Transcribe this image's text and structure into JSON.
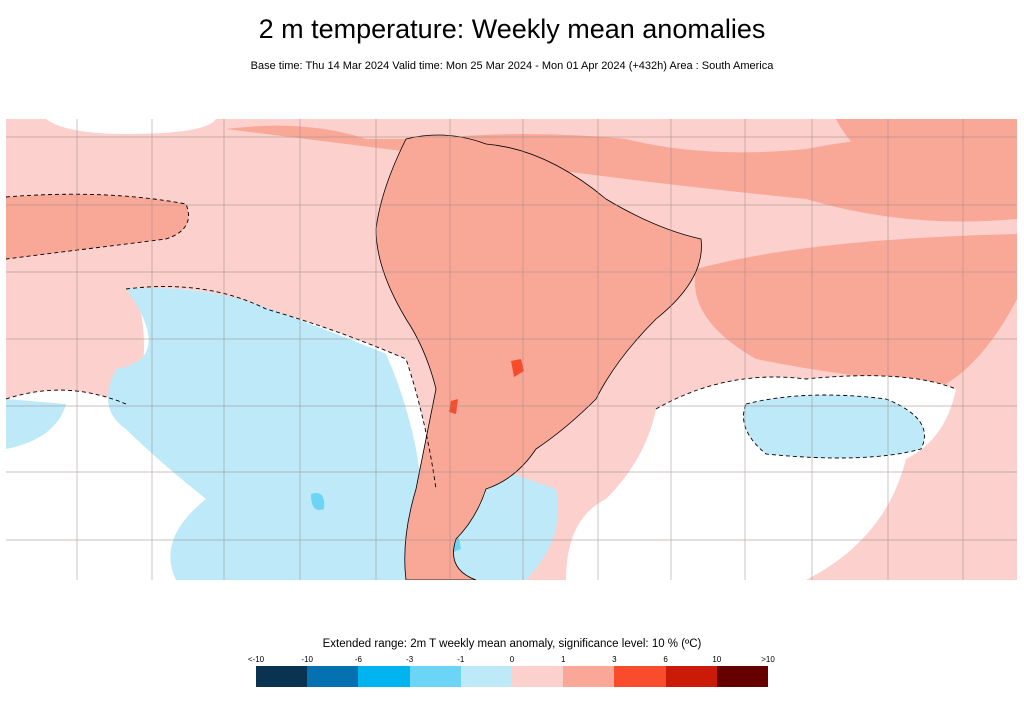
{
  "header": {
    "title": "2 m temperature: Weekly mean anomalies",
    "subtitle": "Base time: Thu 14 Mar 2024 Valid time: Mon 25 Mar 2024 - Mon 01 Apr 2024 (+432h) Area : South America"
  },
  "map": {
    "area": "South America",
    "colors": {
      "land_outline": "#000000",
      "grid": "#9a8a85",
      "base_warm": "#fcd0cc",
      "warm": "#f9a898",
      "cool": "#bde9f8",
      "cooler": "#6cd4f5",
      "neutral": "#ffffff",
      "hot": "#f84c2c"
    }
  },
  "legend": {
    "title": "Extended range: 2m T weekly mean anomaly, significance level: 10 % (ºC)",
    "ticks": [
      "<-10",
      "-10",
      "-6",
      "-3",
      "-1",
      "0",
      "1",
      "3",
      "6",
      "10",
      ">10"
    ],
    "colors": [
      "#0a3352",
      "#0571b0",
      "#00b4f0",
      "#6cd4f5",
      "#bde9f8",
      "#fcd0cc",
      "#f9a898",
      "#f84c2c",
      "#cc1a08",
      "#660000"
    ]
  }
}
